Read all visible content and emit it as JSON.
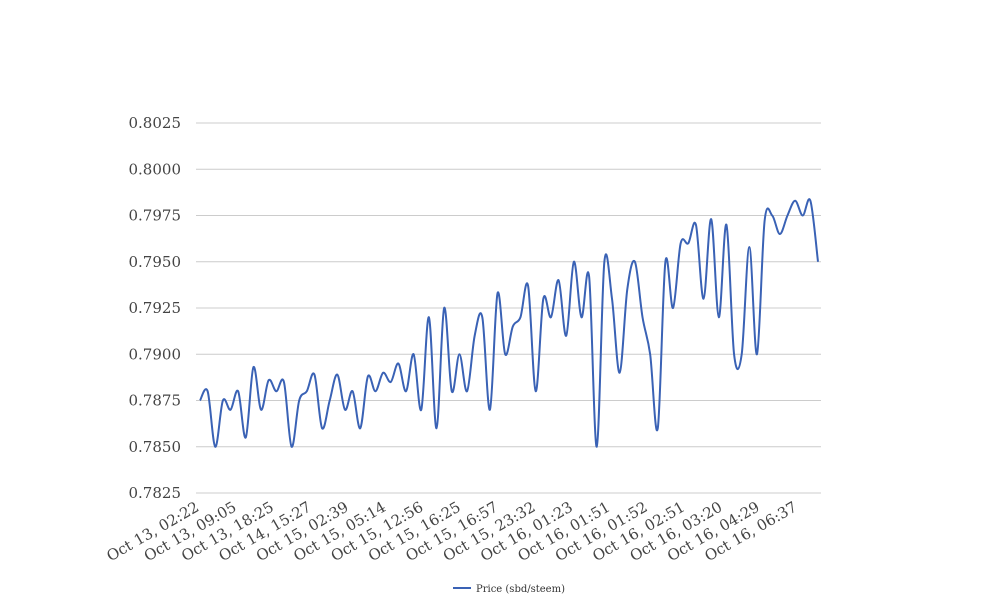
{
  "chart_data": {
    "type": "line",
    "title": "",
    "xlabel": "",
    "ylabel": "",
    "ylim": [
      0.7825,
      0.8025
    ],
    "yticks": [
      "0.7825",
      "0.7850",
      "0.7875",
      "0.7900",
      "0.7925",
      "0.7950",
      "0.7975",
      "0.8000",
      "0.8025"
    ],
    "xticks": [
      "Oct 13, 02:22",
      "Oct 13, 09:05",
      "Oct 13, 18:25",
      "Oct 14, 15:27",
      "Oct 15, 02:39",
      "Oct 15, 05:14",
      "Oct 15, 12:56",
      "Oct 15, 16:25",
      "Oct 15, 16:57",
      "Oct 15, 23:32",
      "Oct 16, 01:23",
      "Oct 16, 01:51",
      "Oct 16, 01:52",
      "Oct 16, 02:51",
      "Oct 16, 03:20",
      "Oct 16, 04:29",
      "Oct 16, 06:37"
    ],
    "grid": true,
    "legend_position": "bottom",
    "series": [
      {
        "name": "Price (sbd/steem)",
        "color": "#3a62b5",
        "values": [
          0.7875,
          0.788,
          0.785,
          0.7875,
          0.787,
          0.788,
          0.7855,
          0.7893,
          0.787,
          0.7886,
          0.788,
          0.7885,
          0.785,
          0.7875,
          0.788,
          0.7889,
          0.786,
          0.7875,
          0.7889,
          0.787,
          0.788,
          0.786,
          0.7888,
          0.788,
          0.789,
          0.7885,
          0.7895,
          0.788,
          0.79,
          0.787,
          0.792,
          0.786,
          0.7925,
          0.788,
          0.79,
          0.788,
          0.791,
          0.792,
          0.787,
          0.7933,
          0.79,
          0.7915,
          0.792,
          0.7937,
          0.788,
          0.793,
          0.792,
          0.794,
          0.791,
          0.795,
          0.792,
          0.7942,
          0.785,
          0.795,
          0.793,
          0.789,
          0.7935,
          0.795,
          0.792,
          0.79,
          0.786,
          0.795,
          0.7925,
          0.796,
          0.796,
          0.797,
          0.793,
          0.7973,
          0.792,
          0.797,
          0.79,
          0.79,
          0.7958,
          0.79,
          0.7972,
          0.7975,
          0.7965,
          0.7975,
          0.7983,
          0.7975,
          0.7983,
          0.795
        ]
      }
    ]
  }
}
